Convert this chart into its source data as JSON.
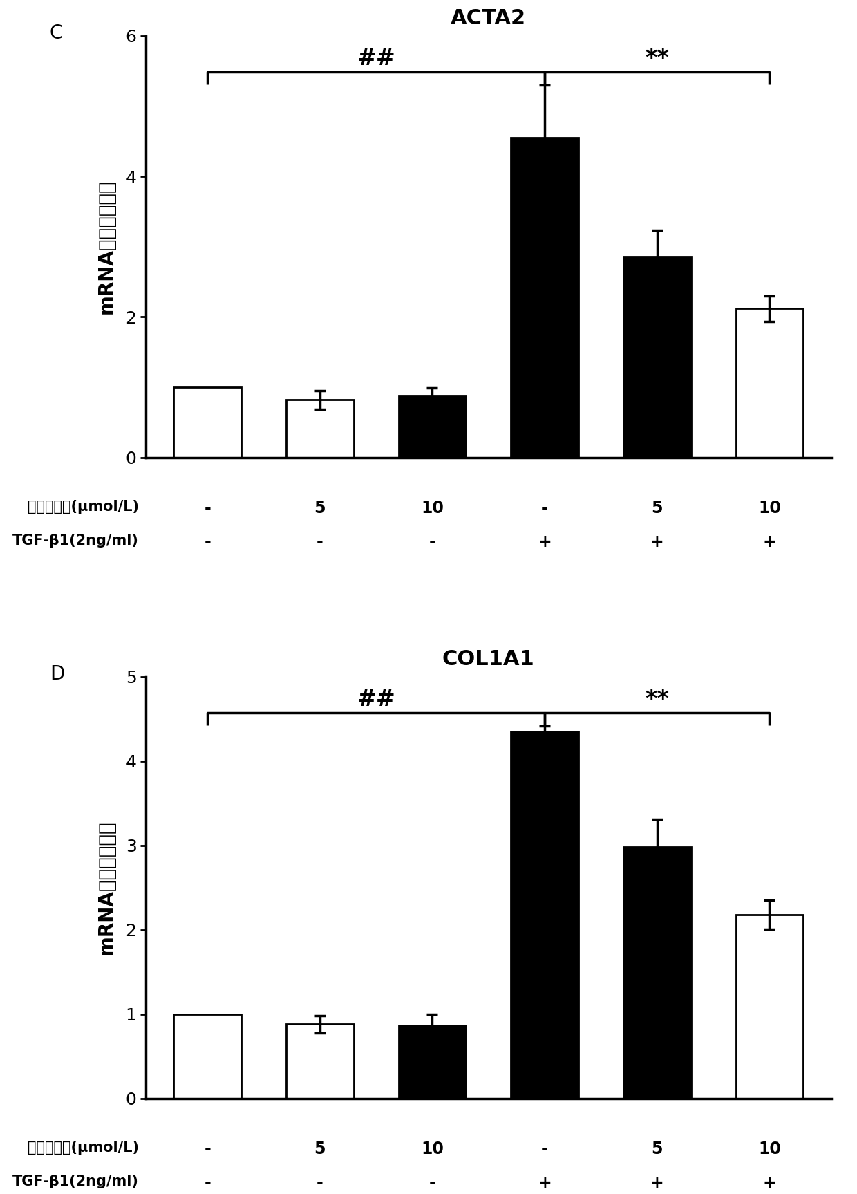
{
  "panel_C": {
    "title": "ACTA2",
    "label": "C",
    "values": [
      1.0,
      0.82,
      0.87,
      4.55,
      2.85,
      2.12
    ],
    "errors": [
      0.0,
      0.13,
      0.12,
      0.75,
      0.38,
      0.18
    ],
    "colors": [
      "white",
      "white",
      "black",
      "black",
      "black",
      "white"
    ],
    "ylim": [
      0,
      6
    ],
    "yticks": [
      0,
      2,
      4,
      6
    ]
  },
  "panel_D": {
    "title": "COL1A1",
    "label": "D",
    "values": [
      1.0,
      0.88,
      0.87,
      4.35,
      2.98,
      2.18
    ],
    "errors": [
      0.0,
      0.1,
      0.13,
      0.07,
      0.33,
      0.17
    ],
    "colors": [
      "white",
      "white",
      "black",
      "black",
      "black",
      "white"
    ],
    "ylim": [
      0,
      5
    ],
    "yticks": [
      0,
      1,
      2,
      3,
      4,
      5
    ]
  },
  "ylabel": "mRNA的相对表达量",
  "xlabel_line1_prefix": "木香烃内酯(μmol/L)",
  "xlabel_line2_prefix": "TGF-β1(2ng/ml)",
  "xlabel_vals": [
    "-",
    "5",
    "10",
    "-",
    "5",
    "10"
  ],
  "xlabel_tgf": [
    "-",
    "-",
    "-",
    "+",
    "+",
    "+"
  ],
  "bar_width": 0.6,
  "edgecolor": "black",
  "linewidth": 2.0,
  "background_color": "white",
  "title_fontsize": 22,
  "panel_label_fontsize": 20,
  "tick_fontsize": 18,
  "annotation_fontsize": 24,
  "xlabel_prefix_fontsize": 15,
  "xlabel_val_fontsize": 17
}
